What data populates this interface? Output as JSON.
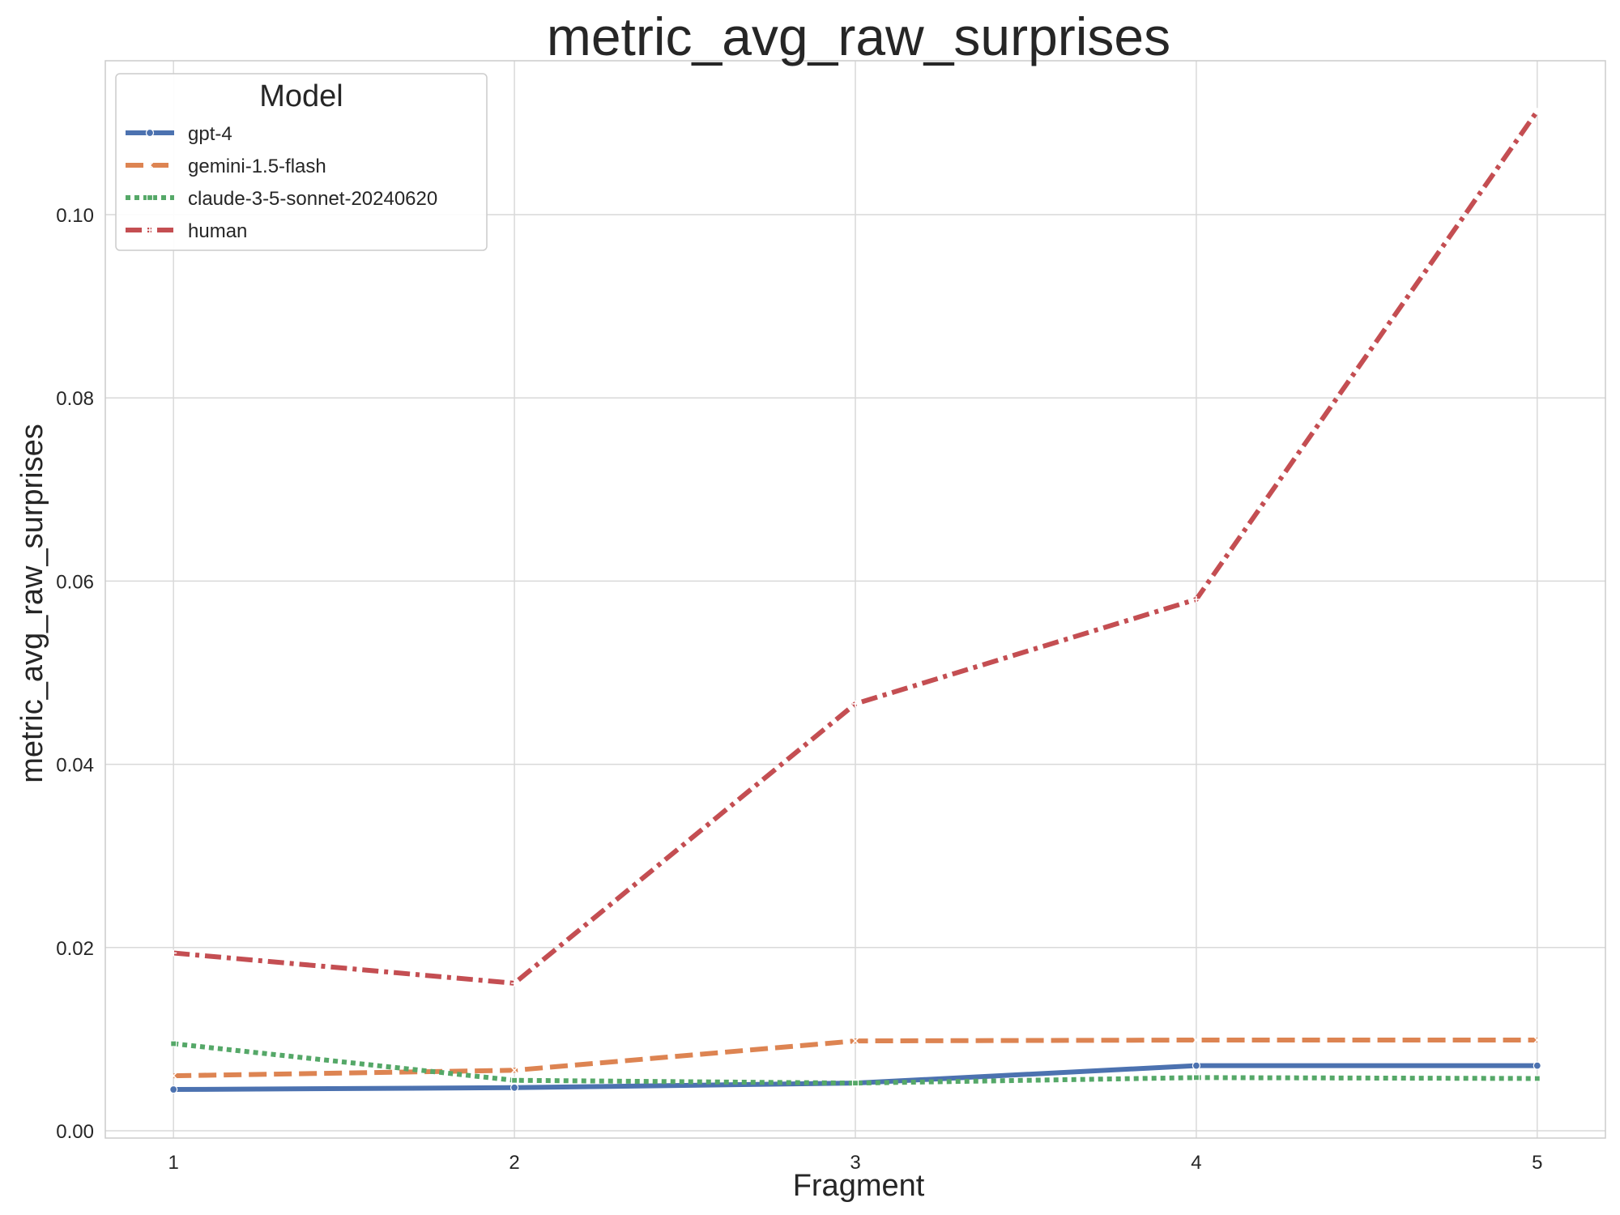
{
  "chart_data": {
    "type": "line",
    "title": "metric_avg_raw_surprises",
    "xlabel": "Fragment",
    "ylabel": "metric_avg_raw_surprises",
    "x": [
      1,
      2,
      3,
      4,
      5
    ],
    "x_tick_labels": [
      "1",
      "2",
      "3",
      "4",
      "5"
    ],
    "xlim": [
      0.8,
      5.2
    ],
    "ylim": [
      -0.0008,
      0.1168
    ],
    "y_ticks": [
      0.0,
      0.02,
      0.04,
      0.06,
      0.08,
      0.1
    ],
    "y_tick_labels": [
      "0.00",
      "0.02",
      "0.04",
      "0.06",
      "0.08",
      "0.10"
    ],
    "grid": true,
    "legend": {
      "title": "Model",
      "placement": "top-left"
    },
    "series": [
      {
        "name": "gpt-4",
        "color": "#4c72b0",
        "style": "solid",
        "marker": "circle",
        "values": [
          0.0045,
          0.0047,
          0.0052,
          0.0071,
          0.0071
        ]
      },
      {
        "name": "gemini-1.5-flash",
        "color": "#dd8452",
        "style": "dashed",
        "marker": "x",
        "values": [
          0.006,
          0.0066,
          0.0098,
          0.0099,
          0.0099
        ]
      },
      {
        "name": "claude-3-5-sonnet-20240620",
        "color": "#55a868",
        "style": "dotted",
        "marker": "square",
        "values": [
          0.0095,
          0.0055,
          0.0052,
          0.0058,
          0.0057
        ]
      },
      {
        "name": "human",
        "color": "#c44e52",
        "style": "dashdot",
        "marker": "plus",
        "values": [
          0.0194,
          0.0161,
          0.0466,
          0.058,
          0.1113
        ]
      }
    ]
  }
}
